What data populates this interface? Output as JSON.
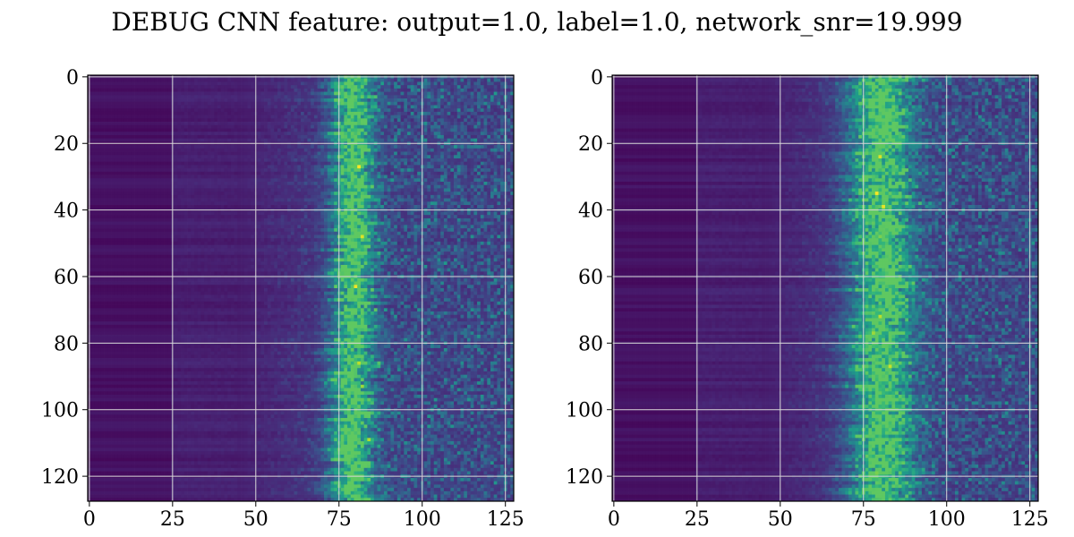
{
  "figure": {
    "title": "DEBUG CNN feature: output=1.0, label=1.0, network_snr=19.999"
  },
  "chart_data": [
    {
      "type": "heatmap",
      "title": "",
      "xlabel": "",
      "ylabel": "",
      "rows": 128,
      "cols": 128,
      "xlim": [
        -0.5,
        127.5
      ],
      "ylim": [
        127.5,
        -0.5
      ],
      "xticks": [
        0,
        25,
        50,
        75,
        100,
        125
      ],
      "yticks": [
        0,
        20,
        40,
        60,
        80,
        100,
        120
      ],
      "grid": true,
      "colormap": "viridis",
      "colors": {
        "low": "#440154",
        "mid": "#21918c",
        "high": "#fde725"
      },
      "features": {
        "low_band_end_col": 25,
        "band_center_col": 79,
        "band_width_cols": 6,
        "hotspots": [
          {
            "row": 27,
            "col": 81,
            "value": 1.0
          },
          {
            "row": 48,
            "col": 82,
            "value": 0.95
          },
          {
            "row": 63,
            "col": 80,
            "value": 0.98
          },
          {
            "row": 86,
            "col": 81,
            "value": 0.9
          },
          {
            "row": 93,
            "col": 82,
            "value": 0.85
          },
          {
            "row": 109,
            "col": 84,
            "value": 0.88
          },
          {
            "row": 99,
            "col": 76,
            "value": 0.6
          }
        ]
      }
    },
    {
      "type": "heatmap",
      "title": "",
      "xlabel": "",
      "ylabel": "",
      "rows": 128,
      "cols": 128,
      "xlim": [
        -0.5,
        127.5
      ],
      "ylim": [
        127.5,
        -0.5
      ],
      "xticks": [
        0,
        25,
        50,
        75,
        100,
        125
      ],
      "yticks": [
        0,
        20,
        40,
        60,
        80,
        100,
        120
      ],
      "grid": true,
      "colormap": "viridis",
      "colors": {
        "low": "#440154",
        "mid": "#21918c",
        "high": "#fde725"
      },
      "features": {
        "low_band_end_col": 25,
        "band_center_col": 80,
        "band_width_cols": 9,
        "hotspots": [
          {
            "row": 24,
            "col": 80,
            "value": 0.95
          },
          {
            "row": 35,
            "col": 79,
            "value": 1.0
          },
          {
            "row": 39,
            "col": 81,
            "value": 0.97
          },
          {
            "row": 48,
            "col": 80,
            "value": 0.8
          },
          {
            "row": 72,
            "col": 80,
            "value": 0.9
          },
          {
            "row": 77,
            "col": 78,
            "value": 0.85
          },
          {
            "row": 87,
            "col": 83,
            "value": 0.92
          },
          {
            "row": 119,
            "col": 79,
            "value": 0.8
          }
        ]
      }
    }
  ]
}
